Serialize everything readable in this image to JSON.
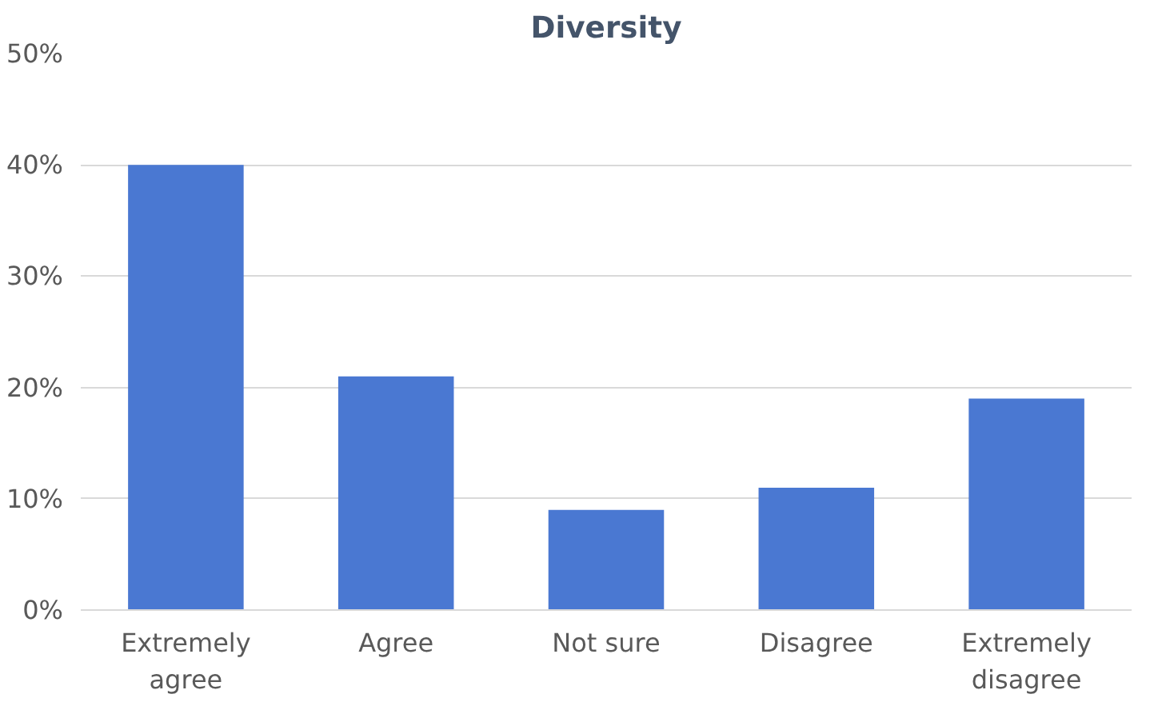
{
  "chart_data": {
    "type": "bar",
    "title": "Diversity",
    "categories": [
      "Extremely agree",
      "Agree",
      "Not sure",
      "Disagree",
      "Extremely disagree"
    ],
    "values": [
      40,
      21,
      9,
      11,
      19
    ],
    "color": "#4a78d2",
    "ylim": [
      0,
      50
    ],
    "yticks": [
      {
        "value": 0,
        "label": "0%"
      },
      {
        "value": 10,
        "label": "10%"
      },
      {
        "value": 20,
        "label": "20%"
      },
      {
        "value": 30,
        "label": "30%"
      },
      {
        "value": 40,
        "label": "40%"
      },
      {
        "value": 50,
        "label": "50%"
      }
    ],
    "grid": "y"
  }
}
